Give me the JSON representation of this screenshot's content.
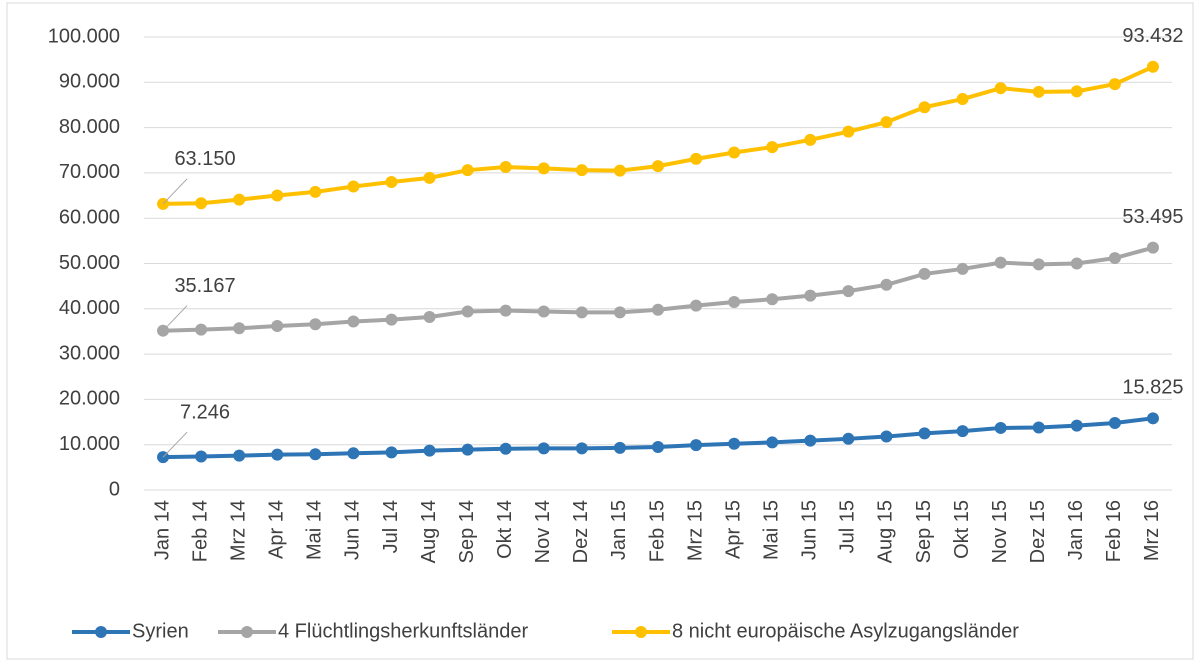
{
  "chart_data": {
    "type": "line",
    "categories": [
      "Jan 14",
      "Feb 14",
      "Mrz 14",
      "Apr 14",
      "Mai 14",
      "Jun 14",
      "Jul 14",
      "Aug 14",
      "Sep 14",
      "Okt 14",
      "Nov 14",
      "Dez 14",
      "Jan 15",
      "Feb 15",
      "Mrz 15",
      "Apr 15",
      "Mai 15",
      "Jun 15",
      "Jul 15",
      "Aug 15",
      "Sep 15",
      "Okt 15",
      "Nov 15",
      "Dez 15",
      "Jan 16",
      "Feb 16",
      "Mrz 16"
    ],
    "series": [
      {
        "name": "Syrien",
        "color": "#2e75b6",
        "values": [
          7246,
          7400,
          7600,
          7800,
          7900,
          8100,
          8300,
          8700,
          8900,
          9100,
          9200,
          9200,
          9300,
          9500,
          9900,
          10200,
          10500,
          10900,
          11300,
          11800,
          12500,
          13000,
          13700,
          13800,
          14200,
          14800,
          15825
        ],
        "value_labels": [
          "7.246",
          null,
          null,
          null,
          null,
          null,
          null,
          null,
          null,
          null,
          null,
          null,
          null,
          null,
          null,
          null,
          null,
          null,
          null,
          null,
          null,
          null,
          null,
          null,
          null,
          null,
          "15.825"
        ]
      },
      {
        "name": "4 Flüchtlingsherkunftsländer",
        "color": "#a5a5a5",
        "values": [
          35167,
          35400,
          35700,
          36200,
          36600,
          37200,
          37600,
          38200,
          39400,
          39600,
          39400,
          39200,
          39200,
          39800,
          40700,
          41500,
          42100,
          42900,
          43900,
          45300,
          47700,
          48800,
          50200,
          49800,
          50000,
          51200,
          53495
        ],
        "value_labels": [
          "35.167",
          null,
          null,
          null,
          null,
          null,
          null,
          null,
          null,
          null,
          null,
          null,
          null,
          null,
          null,
          null,
          null,
          null,
          null,
          null,
          null,
          null,
          null,
          null,
          null,
          null,
          "53.495"
        ]
      },
      {
        "name": "8 nicht europäische Asylzugangsländer",
        "color": "#ffc000",
        "values": [
          63150,
          63300,
          64100,
          65000,
          65800,
          67000,
          68000,
          68900,
          70600,
          71300,
          71000,
          70600,
          70500,
          71500,
          73100,
          74500,
          75700,
          77300,
          79100,
          81200,
          84500,
          86300,
          88700,
          87900,
          88000,
          89600,
          93432
        ],
        "value_labels": [
          "63.150",
          null,
          null,
          null,
          null,
          null,
          null,
          null,
          null,
          null,
          null,
          null,
          null,
          null,
          null,
          null,
          null,
          null,
          null,
          null,
          null,
          null,
          null,
          null,
          null,
          null,
          "93.432"
        ]
      }
    ],
    "ylim": [
      0,
      100000
    ],
    "yticks": [
      0,
      {
        "value": 10000,
        "label": "10.000"
      },
      {
        "value": 20000,
        "label": "20.000"
      },
      {
        "value": 30000,
        "label": "30.000"
      },
      {
        "value": 40000,
        "label": "40.000"
      },
      {
        "value": 50000,
        "label": "50.000"
      },
      {
        "value": 60000,
        "label": "60.000"
      },
      {
        "value": 70000,
        "label": "70.000"
      },
      {
        "value": 80000,
        "label": "80.000"
      },
      {
        "value": 90000,
        "label": "90.000"
      },
      {
        "value": 100000,
        "label": "100.000"
      }
    ],
    "grid": true,
    "legend": "bottom"
  }
}
